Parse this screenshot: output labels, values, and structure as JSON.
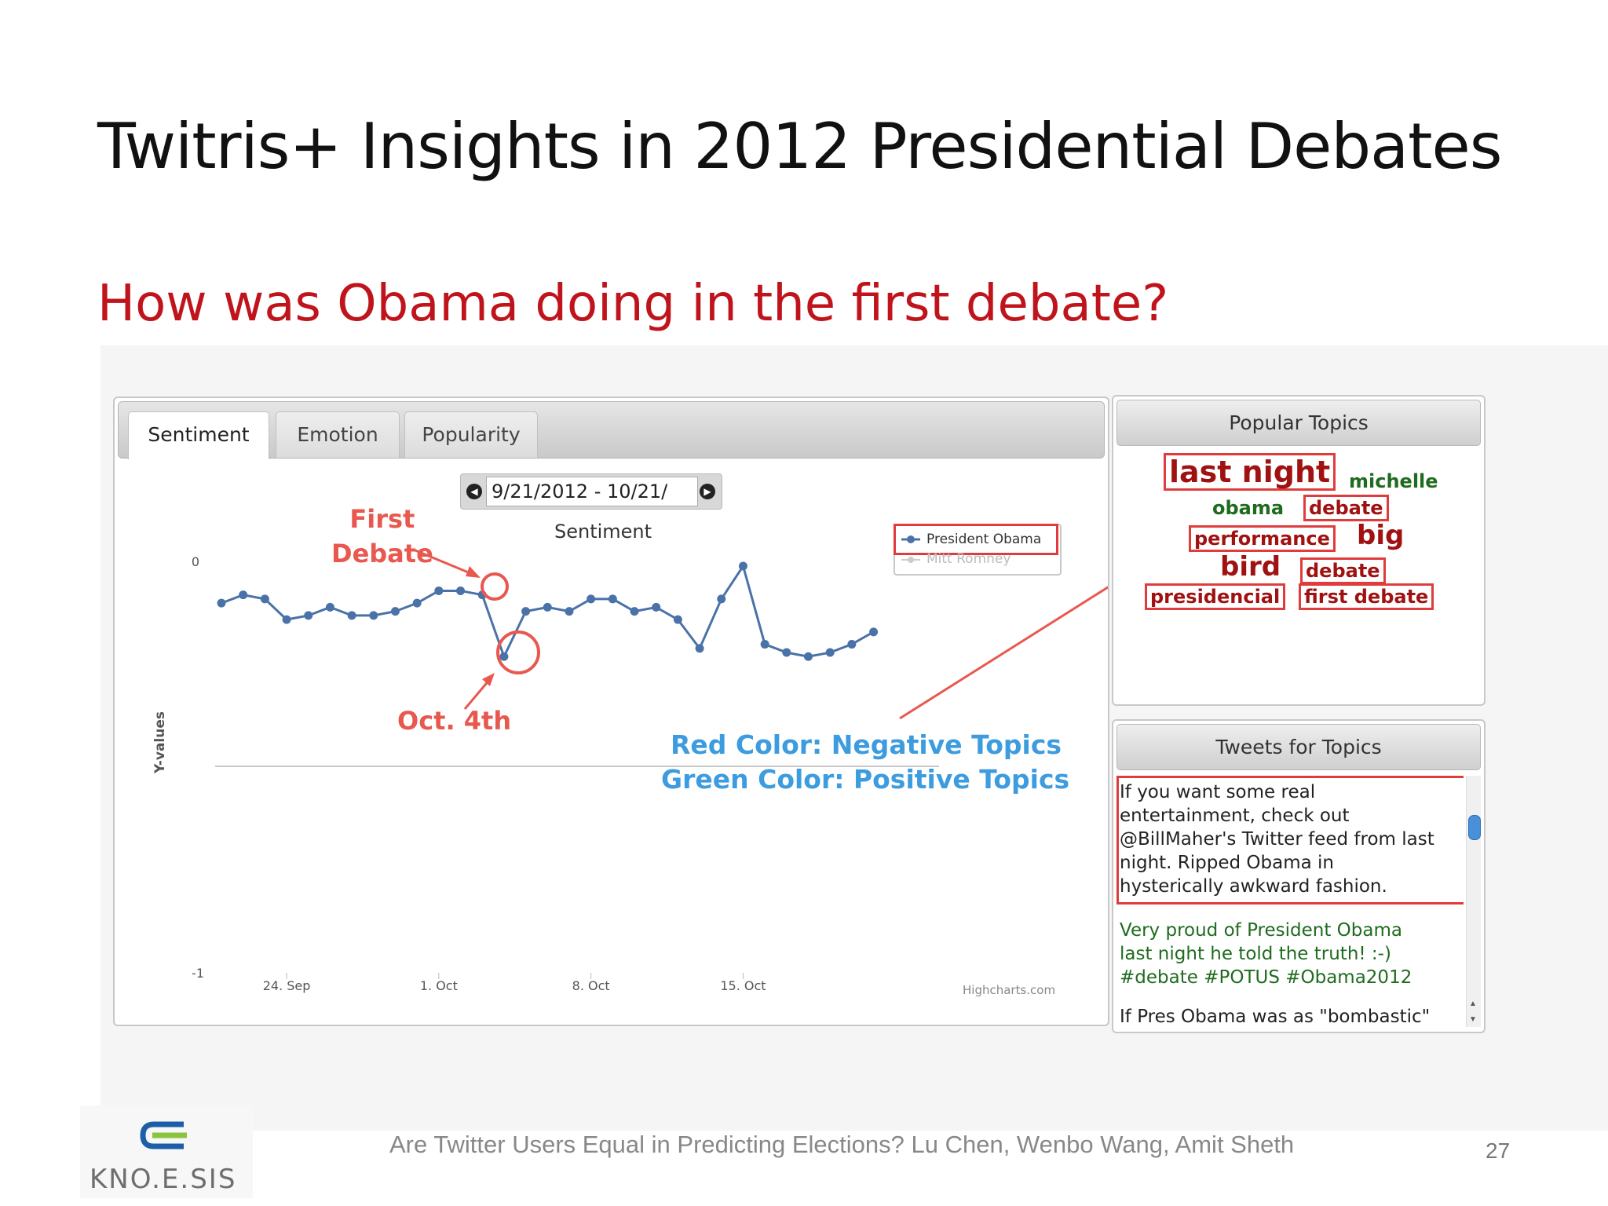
{
  "slide": {
    "title": "Twitris+ Insights in 2012 Presidential Debates",
    "subtitle": "How was Obama doing in the first debate?",
    "footer": "Are Twitter Users Equal in Predicting Elections?  Lu Chen, Wenbo Wang, Amit Sheth",
    "page_number": "27",
    "logo_text": "KNO.E.SIS"
  },
  "tabs": [
    {
      "label": "Sentiment",
      "active": true
    },
    {
      "label": "Emotion",
      "active": false
    },
    {
      "label": "Popularity",
      "active": false
    }
  ],
  "date_range": "9/21/2012 - 10/21/",
  "chart_data": {
    "type": "line",
    "title": "Sentiment",
    "ylabel": "Y-values",
    "ylim": [
      -1,
      0
    ],
    "yticks": [
      "0",
      "-1"
    ],
    "x_tick_labels": [
      "24. Sep",
      "1. Oct",
      "8. Oct",
      "15. Oct"
    ],
    "credit": "Highcharts.com",
    "legend_position": "top-right",
    "series": [
      {
        "name": "President Obama",
        "color": "#4a72a8",
        "x": [
          "2012-09-21",
          "2012-09-22",
          "2012-09-23",
          "2012-09-24",
          "2012-09-25",
          "2012-09-26",
          "2012-09-27",
          "2012-09-28",
          "2012-09-29",
          "2012-09-30",
          "2012-10-01",
          "2012-10-02",
          "2012-10-03",
          "2012-10-04",
          "2012-10-05",
          "2012-10-06",
          "2012-10-07",
          "2012-10-08",
          "2012-10-09",
          "2012-10-10",
          "2012-10-11",
          "2012-10-12",
          "2012-10-13",
          "2012-10-14",
          "2012-10-15",
          "2012-10-16",
          "2012-10-17",
          "2012-10-18",
          "2012-10-19",
          "2012-10-20",
          "2012-10-21"
        ],
        "values": [
          -0.09,
          -0.07,
          -0.08,
          -0.13,
          -0.12,
          -0.1,
          -0.12,
          -0.12,
          -0.11,
          -0.09,
          -0.06,
          -0.06,
          -0.07,
          -0.22,
          -0.11,
          -0.1,
          -0.11,
          -0.08,
          -0.08,
          -0.11,
          -0.1,
          -0.13,
          -0.2,
          -0.08,
          0.0,
          -0.19,
          -0.21,
          -0.22,
          -0.21,
          -0.19,
          -0.16
        ]
      },
      {
        "name": "Mitt Romney",
        "color": "#c8c8c8",
        "x": [],
        "values": []
      }
    ]
  },
  "annotations": {
    "first_debate": [
      "First",
      "Debate"
    ],
    "oct4": "Oct. 4th",
    "note_negative": "Red Color: Negative Topics",
    "note_positive": "Green Color: Positive Topics"
  },
  "popular_topics": {
    "header": "Popular Topics",
    "topics": [
      {
        "text": "last night",
        "sentiment": "negative",
        "highlighted": true
      },
      {
        "text": "michelle",
        "sentiment": "positive",
        "highlighted": false
      },
      {
        "text": "obama",
        "sentiment": "positive",
        "highlighted": false
      },
      {
        "text": "debate",
        "sentiment": "negative",
        "highlighted": true
      },
      {
        "text": "performance",
        "sentiment": "negative",
        "highlighted": true
      },
      {
        "text": "big",
        "sentiment": "negative",
        "highlighted": false
      },
      {
        "text": "bird",
        "sentiment": "negative",
        "highlighted": false
      },
      {
        "text": "debate",
        "sentiment": "negative",
        "highlighted": true
      },
      {
        "text": "presidencial",
        "sentiment": "negative",
        "highlighted": true
      },
      {
        "text": "first debate",
        "sentiment": "negative",
        "highlighted": true
      }
    ]
  },
  "tweets_panel": {
    "header": "Tweets for Topics",
    "tweets": [
      {
        "lines": [
          "If you want some real",
          "entertainment, check out",
          "@BillMaher's Twitter feed from last",
          "night. Ripped Obama in",
          "hysterically awkward fashion."
        ],
        "sentiment": "negative"
      },
      {
        "lines": [
          "Very proud of President Obama",
          "last night he told the truth! :-)",
          "#debate #POTUS #Obama2012"
        ],
        "sentiment": "positive"
      },
      {
        "lines": [
          "If Pres Obama was as \"bombastic\""
        ],
        "sentiment": "negative"
      }
    ]
  },
  "colors": {
    "title_red": "#c0141c",
    "annotation_red": "#e8584f",
    "note_blue": "#3d9ce0",
    "negative_topic": "#a01212",
    "positive_topic": "#1f6b1f"
  }
}
